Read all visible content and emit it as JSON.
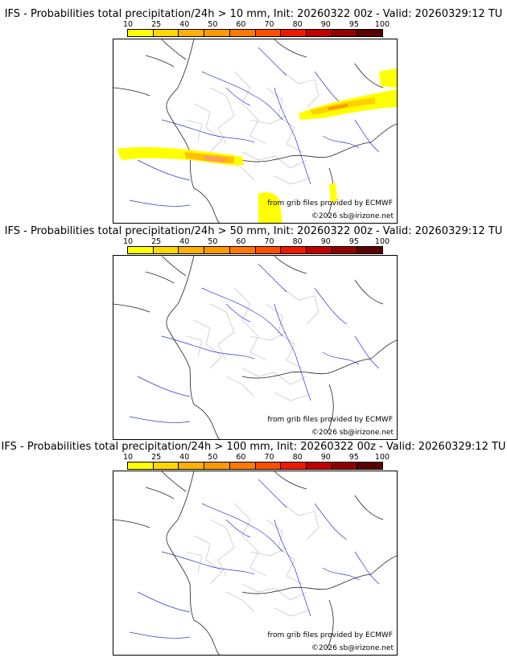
{
  "legend": {
    "ticks": [
      "10",
      "25",
      "40",
      "50",
      "60",
      "70",
      "80",
      "90",
      "95",
      "100"
    ],
    "colors": [
      "#ffff00",
      "#ffd700",
      "#ffb000",
      "#ff9900",
      "#ff7a00",
      "#ff5000",
      "#ee1a00",
      "#c00000",
      "#900000",
      "#5a0000"
    ]
  },
  "panels": [
    {
      "title": "IFS - Probabilities total precipitation/24h > 10 mm, Init: 20260322 00z - Valid: 20260329:12 TU",
      "credit": "from grib files provided by ECMWF",
      "copyright": "©2026 sb@irizone.net"
    },
    {
      "title": "IFS - Probabilities total precipitation/24h > 50 mm, Init: 20260322 00z - Valid: 20260329:12 TU",
      "credit": "from grib files provided by ECMWF",
      "copyright": "©2026 sb@irizone.net"
    },
    {
      "title": "IFS - Probabilities total precipitation/24h > 100 mm, Init: 20260322 00z - Valid: 20260329:12 TU",
      "credit": "from grib files provided by ECMWF",
      "copyright": "©2026 sb@irizone.net"
    }
  ]
}
